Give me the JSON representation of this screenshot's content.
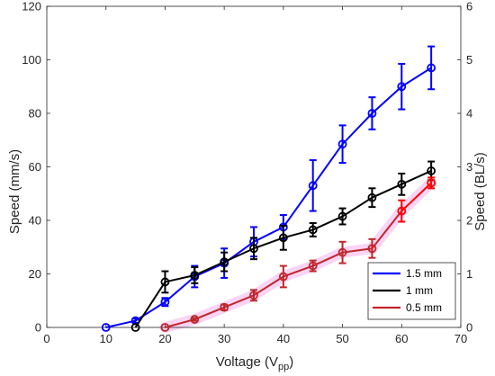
{
  "chart_data": {
    "type": "line",
    "xlabel": "Voltage (V",
    "xlabel_sub": "pp",
    "xlabel_close": ")",
    "ylabel_left": "Speed (mm/s)",
    "ylabel_right": "Speed (BL/s)",
    "xlim": [
      0,
      70
    ],
    "ylim": [
      0,
      120
    ],
    "ylim_right": [
      0,
      6
    ],
    "xticks": [
      0,
      10,
      20,
      30,
      40,
      50,
      60,
      70
    ],
    "yticks": [
      0,
      20,
      40,
      60,
      80,
      100,
      120
    ],
    "yticks_right": [
      0,
      1,
      2,
      3,
      4,
      5,
      6
    ],
    "grid": false,
    "legend_position": "bottom-right",
    "series": [
      {
        "name": "1.5 mm",
        "color": "#0000ff",
        "x": [
          10,
          15,
          20,
          25,
          30,
          35,
          40,
          45,
          50,
          55,
          60,
          65
        ],
        "y": [
          0,
          2.5,
          9.5,
          19,
          24,
          32,
          37.5,
          53,
          68.5,
          80,
          90,
          97
        ],
        "err": [
          0,
          0.8,
          1.5,
          4,
          5.5,
          5.5,
          4.5,
          9.5,
          7,
          6,
          8.5,
          8
        ]
      },
      {
        "name": "1 mm",
        "color": "#000000",
        "x": [
          15,
          20,
          25,
          30,
          35,
          40,
          45,
          50,
          55,
          60,
          65
        ],
        "y": [
          0,
          17,
          19.5,
          24.5,
          29.5,
          33.5,
          36.5,
          41.5,
          48.5,
          53.5,
          58.5
        ],
        "err": [
          0,
          4,
          3,
          3.5,
          4,
          4.5,
          2.5,
          3,
          3.5,
          4,
          3.5
        ]
      },
      {
        "name": "0.5 mm",
        "color": "#c0262b",
        "color_end": "#ff0000",
        "x": [
          20,
          25,
          30,
          35,
          40,
          45,
          50,
          55,
          60,
          65
        ],
        "y": [
          0,
          3,
          7.5,
          12,
          19,
          23,
          28,
          29.5,
          43.5,
          54
        ],
        "err": [
          0,
          0.5,
          1,
          2,
          4,
          2,
          4,
          3.5,
          4,
          2
        ]
      }
    ]
  }
}
